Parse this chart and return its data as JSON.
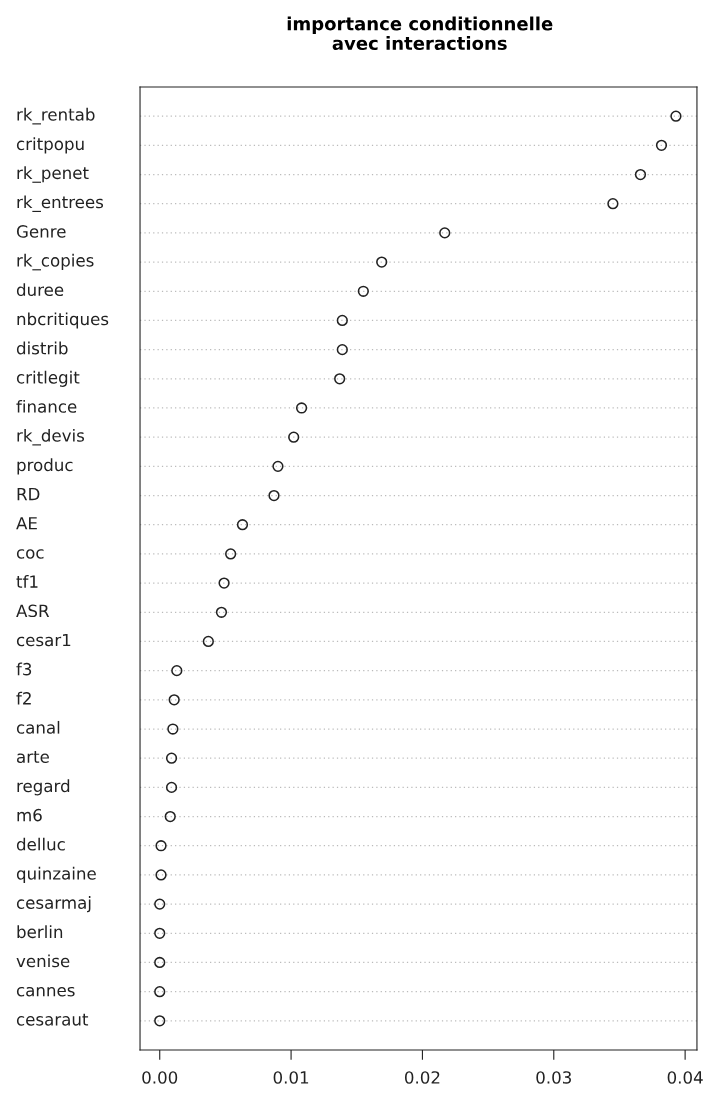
{
  "chart_data": {
    "type": "scatter",
    "title": "importance conditionnelle\navec interactions",
    "categories": [
      "rk_rentab",
      "critpopu",
      "rk_penet",
      "rk_entrees",
      "Genre",
      "rk_copies",
      "duree",
      "nbcritiques",
      "distrib",
      "critlegit",
      "finance",
      "rk_devis",
      "produc",
      "RD",
      "AE",
      "coc",
      "tf1",
      "ASR",
      "cesar1",
      "f3",
      "f2",
      "canal",
      "arte",
      "regard",
      "m6",
      "delluc",
      "quinzaine",
      "cesarmaj",
      "berlin",
      "venise",
      "cannes",
      "cesaraut"
    ],
    "values": [
      0.0393,
      0.0382,
      0.0366,
      0.0345,
      0.0217,
      0.0169,
      0.0155,
      0.0139,
      0.0139,
      0.0137,
      0.0108,
      0.0102,
      0.009,
      0.0087,
      0.0063,
      0.0054,
      0.0049,
      0.0047,
      0.0037,
      0.0013,
      0.0011,
      0.001,
      0.0009,
      0.0009,
      0.0008,
      0.0001,
      0.0001,
      0.0,
      0.0,
      0.0,
      0.0,
      0.0
    ],
    "orientation": "horizontal",
    "color": "#222222",
    "marker": "circle",
    "grid": "y",
    "xlim": [
      -0.0015,
      0.0409
    ],
    "xticks": [
      {
        "value": 0,
        "label": "0.00"
      },
      {
        "value": 0.01,
        "label": "0.01"
      },
      {
        "value": 0.02,
        "label": "0.02"
      },
      {
        "value": 0.03,
        "label": "0.03"
      },
      {
        "value": 0.04,
        "label": "0.04"
      }
    ]
  }
}
